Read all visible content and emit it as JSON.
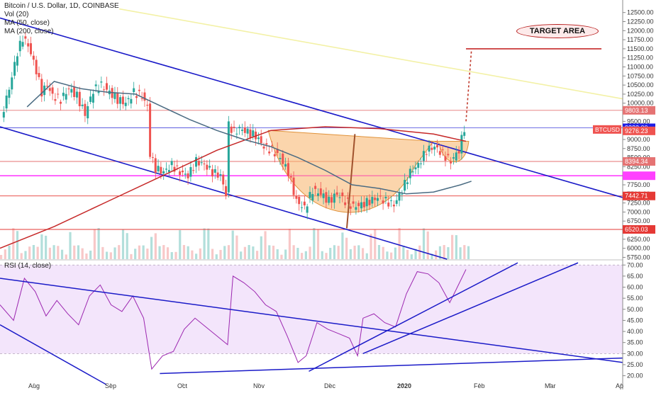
{
  "legend": {
    "title": "Bitcoin / U.S. Dollar, 1D, COINBASE",
    "vol": "Vol (20)",
    "ma50": "MA (50, close)",
    "ma200": "MA (200, close)",
    "rsi": "RSI (14, close)"
  },
  "annotation": {
    "target": "TARGET AREA"
  },
  "colors": {
    "up": "#26a69a",
    "down": "#ef5350",
    "ma50": "#4a6b82",
    "ma200": "#c62828",
    "channel": "#1a1ac8",
    "yellow_line": "#f3f1a6",
    "magenta": "#ff40ff",
    "cup": "#f7b267",
    "rsi_line": "#9c27b0",
    "rsi_band": "#f3e5fb"
  },
  "chart_data": [
    {
      "type": "candlestick",
      "title": "Bitcoin / U.S. Dollar, 1D, COINBASE",
      "x_tick_labels": [
        "Aug",
        "Sep",
        "Oct",
        "Nov",
        "Dec",
        "2020",
        "Feb",
        "Mar",
        "Ap"
      ],
      "y_tick_labels": [
        "5750.00",
        "6000.00",
        "6250.00",
        "6500.00",
        "6750.00",
        "7000.00",
        "7250.00",
        "7500.00",
        "7750.00",
        "8000.00",
        "8250.00",
        "8500.00",
        "8750.00",
        "9000.00",
        "9250.00",
        "9500.00",
        "9750.00",
        "10000.00",
        "10250.00",
        "10500.00",
        "10750.00",
        "11000.00",
        "11250.00",
        "11500.00",
        "11750.00",
        "12000.00",
        "12250.00",
        "12500.00"
      ],
      "ylim": [
        5700,
        12650
      ],
      "price_labels": [
        {
          "text": "9803.13",
          "value": 9803.13,
          "color": "#e57373"
        },
        {
          "text": "9322.00",
          "value": 9322.0,
          "color": "#1e1ee6"
        },
        {
          "text": "BTCUSD",
          "value": 9276.23,
          "color": "#ef5350"
        },
        {
          "text": "9276.23",
          "value": 9276.23,
          "color": "#ef5350"
        },
        {
          "text": "8394.34",
          "value": 8394.34,
          "color": "#e57373"
        },
        {
          "text": "7442.71",
          "value": 7442.71,
          "color": "#e53935"
        },
        {
          "text": "6520.03",
          "value": 6520.03,
          "color": "#e53935"
        }
      ],
      "horizontal_levels": [
        {
          "value": 9803.13,
          "color": "#e57373"
        },
        {
          "value": 9322.0,
          "color": "#5c5ce0"
        },
        {
          "value": 8394.34,
          "color": "#e57373"
        },
        {
          "value": 8000.0,
          "color": "#ff40ff"
        },
        {
          "value": 7442.71,
          "color": "#e53935"
        },
        {
          "value": 6520.03,
          "color": "#e53935"
        }
      ],
      "target_level": 11500,
      "close_series": [
        {
          "day": 1,
          "close": 9600
        },
        {
          "day": 4,
          "close": 10400
        },
        {
          "day": 7,
          "close": 11400
        },
        {
          "day": 9,
          "close": 11800
        },
        {
          "day": 11,
          "close": 11600
        },
        {
          "day": 14,
          "close": 10900
        },
        {
          "day": 16,
          "close": 10300
        },
        {
          "day": 18,
          "close": 10500
        },
        {
          "day": 20,
          "close": 10200
        },
        {
          "day": 23,
          "close": 10100
        },
        {
          "day": 26,
          "close": 10400
        },
        {
          "day": 29,
          "close": 10200
        },
        {
          "day": 32,
          "close": 9700
        },
        {
          "day": 35,
          "close": 10350
        },
        {
          "day": 38,
          "close": 10500
        },
        {
          "day": 41,
          "close": 10300
        },
        {
          "day": 44,
          "close": 10100
        },
        {
          "day": 47,
          "close": 10000
        },
        {
          "day": 50,
          "close": 10300
        },
        {
          "day": 53,
          "close": 10200
        },
        {
          "day": 55,
          "close": 9900
        },
        {
          "day": 56,
          "close": 8600
        },
        {
          "day": 58,
          "close": 8200
        },
        {
          "day": 61,
          "close": 8100
        },
        {
          "day": 64,
          "close": 8300
        },
        {
          "day": 67,
          "close": 8100
        },
        {
          "day": 70,
          "close": 8000
        },
        {
          "day": 73,
          "close": 8400
        },
        {
          "day": 76,
          "close": 8300
        },
        {
          "day": 79,
          "close": 8100
        },
        {
          "day": 82,
          "close": 8000
        },
        {
          "day": 84,
          "close": 7500
        },
        {
          "day": 85,
          "close": 9400
        },
        {
          "day": 87,
          "close": 9200
        },
        {
          "day": 89,
          "close": 9300
        },
        {
          "day": 92,
          "close": 9200
        },
        {
          "day": 95,
          "close": 9100
        },
        {
          "day": 98,
          "close": 8800
        },
        {
          "day": 101,
          "close": 8700
        },
        {
          "day": 104,
          "close": 8500
        },
        {
          "day": 107,
          "close": 8100
        },
        {
          "day": 110,
          "close": 7300
        },
        {
          "day": 113,
          "close": 7100
        },
        {
          "day": 116,
          "close": 7600
        },
        {
          "day": 119,
          "close": 7500
        },
        {
          "day": 122,
          "close": 7300
        },
        {
          "day": 125,
          "close": 7500
        },
        {
          "day": 128,
          "close": 7300
        },
        {
          "day": 131,
          "close": 7150
        },
        {
          "day": 134,
          "close": 7200
        },
        {
          "day": 137,
          "close": 7300
        },
        {
          "day": 140,
          "close": 7400
        },
        {
          "day": 143,
          "close": 7300
        },
        {
          "day": 146,
          "close": 7200
        },
        {
          "day": 149,
          "close": 7600
        },
        {
          "day": 152,
          "close": 8100
        },
        {
          "day": 155,
          "close": 8300
        },
        {
          "day": 158,
          "close": 8700
        },
        {
          "day": 161,
          "close": 8800
        },
        {
          "day": 164,
          "close": 8600
        },
        {
          "day": 167,
          "close": 8400
        },
        {
          "day": 170,
          "close": 8700
        },
        {
          "day": 172,
          "close": 9322
        }
      ],
      "ma50": [
        {
          "day": 10,
          "value": 9900
        },
        {
          "day": 20,
          "value": 10600
        },
        {
          "day": 30,
          "value": 10400
        },
        {
          "day": 40,
          "value": 10300
        },
        {
          "day": 50,
          "value": 10250
        },
        {
          "day": 60,
          "value": 9900
        },
        {
          "day": 70,
          "value": 9550
        },
        {
          "day": 80,
          "value": 9250
        },
        {
          "day": 90,
          "value": 9000
        },
        {
          "day": 100,
          "value": 8800
        },
        {
          "day": 110,
          "value": 8500
        },
        {
          "day": 120,
          "value": 8150
        },
        {
          "day": 130,
          "value": 7750
        },
        {
          "day": 140,
          "value": 7650
        },
        {
          "day": 150,
          "value": 7500
        },
        {
          "day": 160,
          "value": 7550
        },
        {
          "day": 170,
          "value": 7750
        },
        {
          "day": 174,
          "value": 7850
        }
      ],
      "ma200": [
        {
          "day": 0,
          "value": 6000
        },
        {
          "day": 20,
          "value": 6600
        },
        {
          "day": 40,
          "value": 7300
        },
        {
          "day": 60,
          "value": 8000
        },
        {
          "day": 80,
          "value": 8700
        },
        {
          "day": 100,
          "value": 9250
        },
        {
          "day": 120,
          "value": 9350
        },
        {
          "day": 140,
          "value": 9300
        },
        {
          "day": 160,
          "value": 9150
        },
        {
          "day": 172,
          "value": 8950
        }
      ],
      "volume_panel": "overlay at bottom of price pane"
    },
    {
      "type": "line",
      "title": "RSI (14, close)",
      "y_tick_labels": [
        "20.00",
        "25.00",
        "30.00",
        "35.00",
        "40.00",
        "45.00",
        "50.00",
        "55.00",
        "60.00",
        "65.00",
        "70.00"
      ],
      "ylim": [
        17,
        72
      ],
      "band": [
        30,
        70
      ],
      "series": [
        {
          "values": [
            {
              "day": 0,
              "value": 52
            },
            {
              "day": 5,
              "value": 45
            },
            {
              "day": 9,
              "value": 64
            },
            {
              "day": 13,
              "value": 58
            },
            {
              "day": 17,
              "value": 47
            },
            {
              "day": 21,
              "value": 54
            },
            {
              "day": 25,
              "value": 48
            },
            {
              "day": 29,
              "value": 43
            },
            {
              "day": 33,
              "value": 56
            },
            {
              "day": 37,
              "value": 61
            },
            {
              "day": 41,
              "value": 52
            },
            {
              "day": 45,
              "value": 49
            },
            {
              "day": 49,
              "value": 56
            },
            {
              "day": 53,
              "value": 46
            },
            {
              "day": 56,
              "value": 23
            },
            {
              "day": 60,
              "value": 29
            },
            {
              "day": 64,
              "value": 31
            },
            {
              "day": 68,
              "value": 41
            },
            {
              "day": 72,
              "value": 46
            },
            {
              "day": 76,
              "value": 42
            },
            {
              "day": 80,
              "value": 38
            },
            {
              "day": 84,
              "value": 34
            },
            {
              "day": 86,
              "value": 65
            },
            {
              "day": 90,
              "value": 62
            },
            {
              "day": 94,
              "value": 58
            },
            {
              "day": 98,
              "value": 52
            },
            {
              "day": 102,
              "value": 49
            },
            {
              "day": 106,
              "value": 38
            },
            {
              "day": 110,
              "value": 26
            },
            {
              "day": 113,
              "value": 29
            },
            {
              "day": 117,
              "value": 44
            },
            {
              "day": 121,
              "value": 41
            },
            {
              "day": 125,
              "value": 39
            },
            {
              "day": 129,
              "value": 37
            },
            {
              "day": 132,
              "value": 29
            },
            {
              "day": 134,
              "value": 46
            },
            {
              "day": 138,
              "value": 48
            },
            {
              "day": 142,
              "value": 44
            },
            {
              "day": 146,
              "value": 42
            },
            {
              "day": 150,
              "value": 57
            },
            {
              "day": 154,
              "value": 67
            },
            {
              "day": 158,
              "value": 66
            },
            {
              "day": 162,
              "value": 62
            },
            {
              "day": 166,
              "value": 53
            },
            {
              "day": 170,
              "value": 63
            },
            {
              "day": 172,
              "value": 68
            }
          ]
        }
      ]
    }
  ]
}
